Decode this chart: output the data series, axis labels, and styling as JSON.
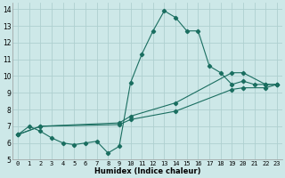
{
  "xlabel": "Humidex (Indice chaleur)",
  "bg_color": "#cde8e8",
  "grid_color": "#aed0d0",
  "line_color": "#1a6e60",
  "xlim": [
    -0.5,
    23.5
  ],
  "ylim": [
    5,
    14.4
  ],
  "xticks": [
    0,
    1,
    2,
    3,
    4,
    5,
    6,
    7,
    8,
    9,
    10,
    11,
    12,
    13,
    14,
    15,
    16,
    17,
    18,
    19,
    20,
    21,
    22,
    23
  ],
  "yticks": [
    5,
    6,
    7,
    8,
    9,
    10,
    11,
    12,
    13,
    14
  ],
  "curve1_x": [
    0,
    1,
    2,
    3,
    4,
    5,
    6,
    7,
    8,
    9,
    10,
    11,
    12,
    13,
    14,
    15,
    16,
    17,
    18,
    19,
    20,
    21,
    22,
    23
  ],
  "curve1_y": [
    6.5,
    7.0,
    6.7,
    6.3,
    6.0,
    5.9,
    6.0,
    6.1,
    5.4,
    5.8,
    9.6,
    11.3,
    12.7,
    13.9,
    13.5,
    12.7,
    12.7,
    10.6,
    10.2,
    9.5,
    9.7,
    9.5,
    9.5,
    9.5
  ],
  "curve2_x": [
    0,
    2,
    9,
    10,
    14,
    19,
    20,
    22,
    23
  ],
  "curve2_y": [
    6.5,
    7.0,
    7.2,
    7.6,
    8.4,
    10.2,
    10.2,
    9.5,
    9.5
  ],
  "curve3_x": [
    0,
    2,
    9,
    10,
    14,
    19,
    20,
    22,
    23
  ],
  "curve3_y": [
    6.5,
    7.0,
    7.1,
    7.4,
    7.9,
    9.2,
    9.3,
    9.3,
    9.5
  ]
}
